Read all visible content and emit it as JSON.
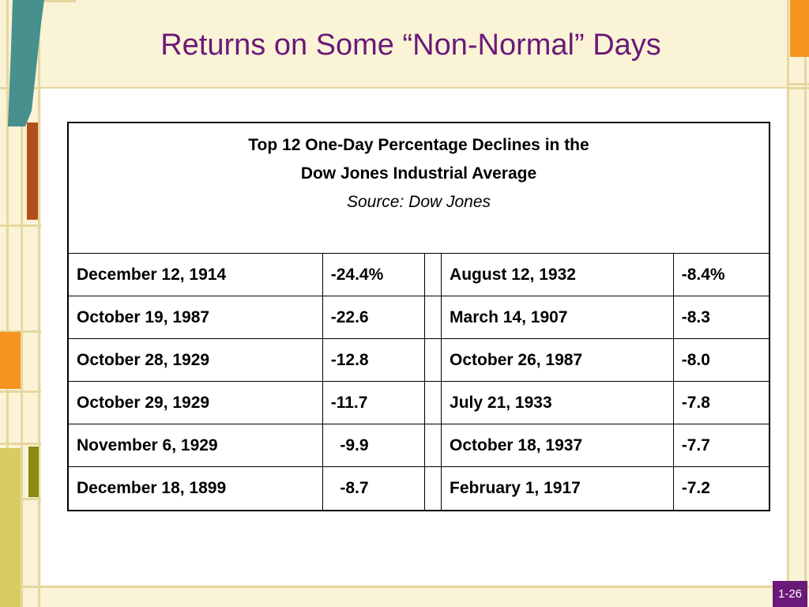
{
  "slide": {
    "title": "Returns on Some “Non-Normal” Days",
    "page_number": "1-26"
  },
  "table": {
    "header_line1": "Top 12 One-Day Percentage Declines in the",
    "header_line2": "Dow Jones Industrial Average",
    "source": "Source: Dow Jones",
    "rows": [
      {
        "date1": "December 12, 1914",
        "value1": "-24.4%",
        "date2": "August 12, 1932",
        "value2": "-8.4%"
      },
      {
        "date1": "October 19, 1987",
        "value1": "-22.6",
        "date2": "March 14, 1907",
        "value2": "-8.3"
      },
      {
        "date1": "October 28, 1929",
        "value1": "-12.8",
        "date2": "October 26, 1987",
        "value2": "-8.0"
      },
      {
        "date1": "October 29, 1929",
        "value1": "-11.7",
        "date2": "July 21, 1933",
        "value2": "-7.8"
      },
      {
        "date1": "November 6, 1929",
        "value1": "  -9.9",
        "date2": "October 18, 1937",
        "value2": "-7.7"
      },
      {
        "date1": "December 18, 1899",
        "value1": "  -8.7",
        "date2": "February 1, 1917",
        "value2": "-7.2"
      }
    ]
  },
  "colors": {
    "title": "#6a1a78",
    "background": "#fbf3d6",
    "teal": "#3d8a8a",
    "orange": "#f5941f",
    "rust": "#b2501c",
    "olive": "#8b8a12",
    "yellow_green": "#d6cc62",
    "slide_number_bg": "#6a1a78"
  }
}
